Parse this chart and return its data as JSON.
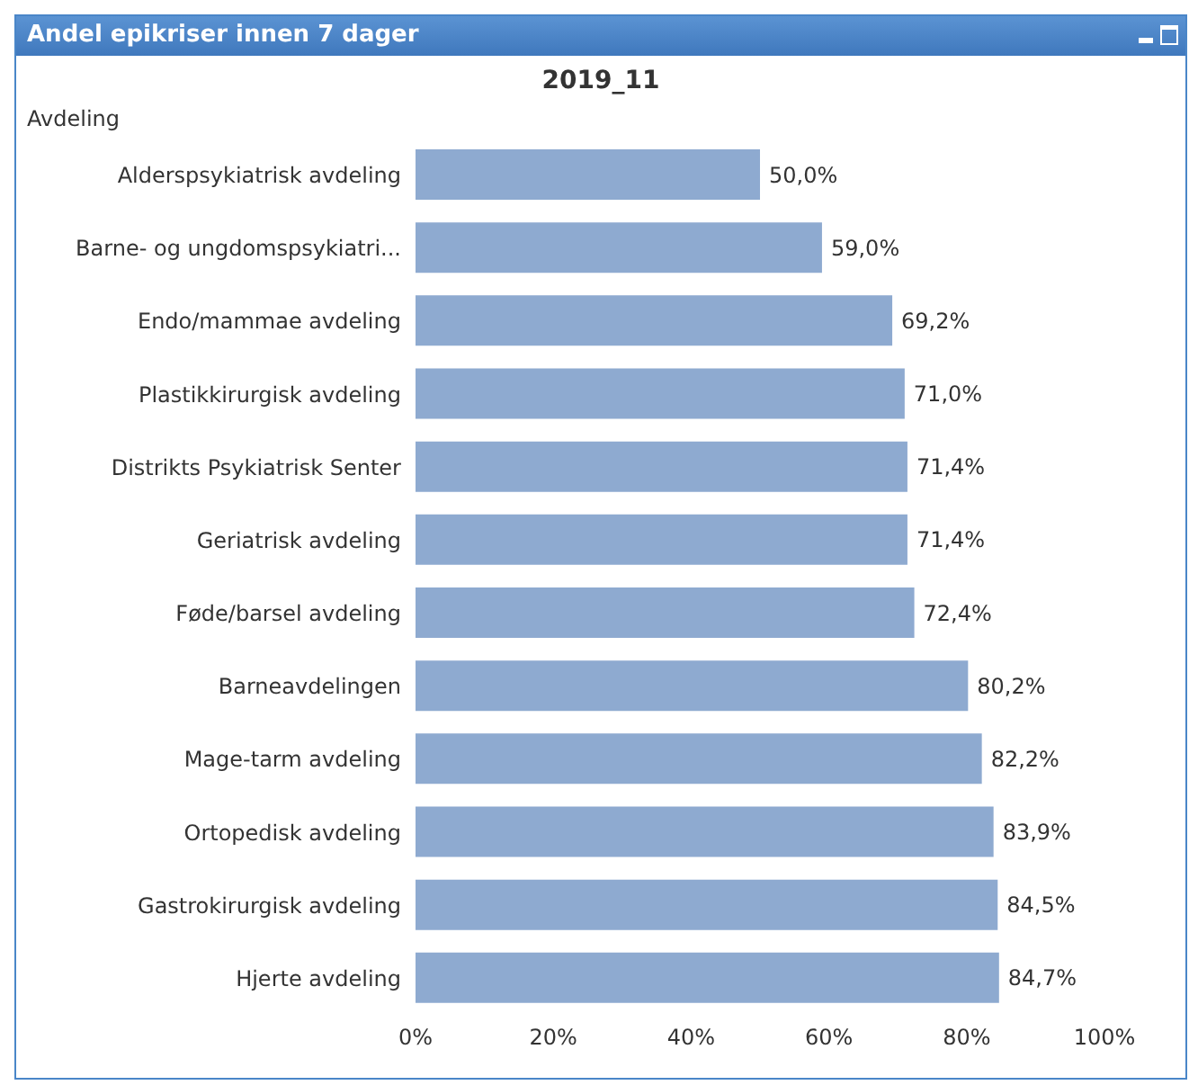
{
  "chart_data": {
    "type": "bar",
    "orientation": "horizontal",
    "title": "Andel epikriser innen 7 dager",
    "subtitle": "2019_11",
    "ylabel": "Avdeling",
    "categories": [
      "Alderspsykiatrisk avdeling",
      "Barne- og ungdomspsykiatri...",
      "Endo/mammae avdeling",
      "Plastikkirurgisk avdeling",
      "Distrikts Psykiatrisk Senter",
      "Geriatrisk avdeling",
      "Føde/barsel avdeling",
      "Barneavdelingen",
      "Mage-tarm avdeling",
      "Ortopedisk avdeling",
      "Gastrokirurgisk avdeling",
      "Hjerte avdeling"
    ],
    "values": [
      50.0,
      59.0,
      69.2,
      71.0,
      71.4,
      71.4,
      72.4,
      80.2,
      82.2,
      83.9,
      84.5,
      84.7
    ],
    "value_labels": [
      "50,0%",
      "59,0%",
      "69,2%",
      "71,0%",
      "71,4%",
      "71,4%",
      "72,4%",
      "80,2%",
      "82,2%",
      "83,9%",
      "84,5%",
      "84,7%"
    ],
    "color": "#8eaad0",
    "xlim": [
      0,
      100
    ],
    "xticks": [
      {
        "value": 0,
        "label": "0%"
      },
      {
        "value": 20,
        "label": "20%"
      },
      {
        "value": 40,
        "label": "40%"
      },
      {
        "value": 60,
        "label": "60%"
      },
      {
        "value": 80,
        "label": "80%"
      },
      {
        "value": 100,
        "label": "100%"
      }
    ],
    "grid": false,
    "legend": false
  }
}
